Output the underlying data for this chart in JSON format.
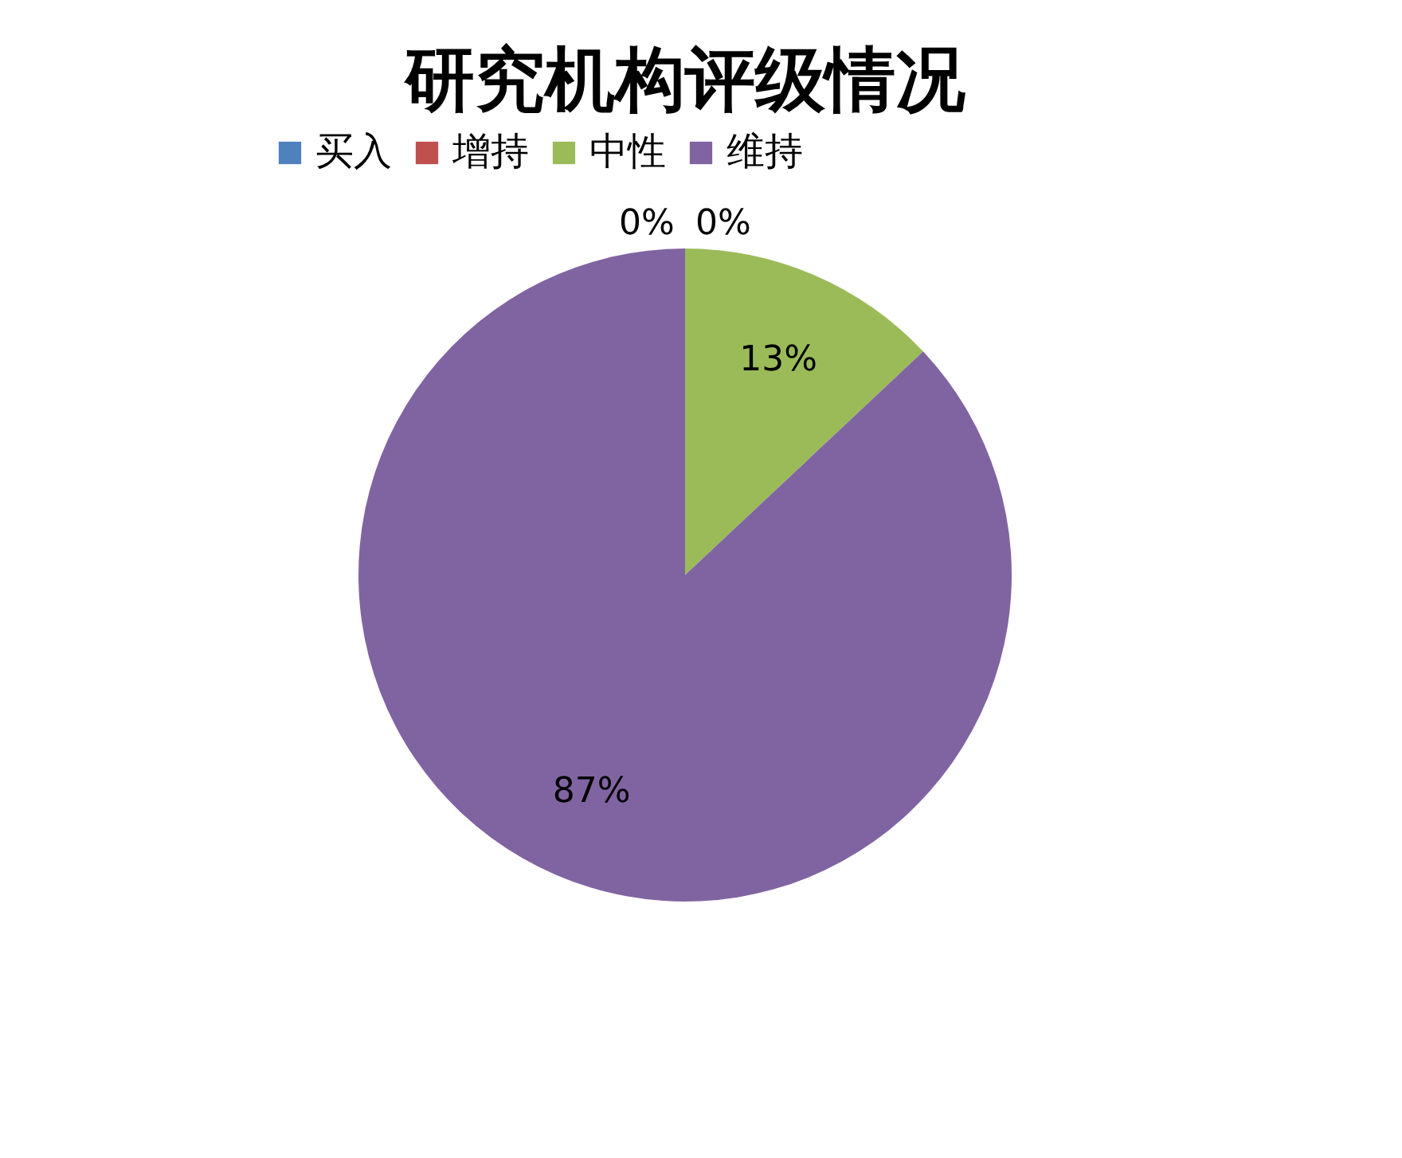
{
  "chart_data": {
    "type": "pie",
    "title": "研究机构评级情况",
    "categories": [
      "买入",
      "增持",
      "中性",
      "维持"
    ],
    "values": [
      0,
      0,
      13,
      87
    ],
    "colors": [
      "#4f81bd",
      "#c0504d",
      "#9bbb59",
      "#8064a2"
    ],
    "value_labels": [
      "0%",
      "0%",
      "13%",
      "87%"
    ],
    "legend": "top"
  }
}
